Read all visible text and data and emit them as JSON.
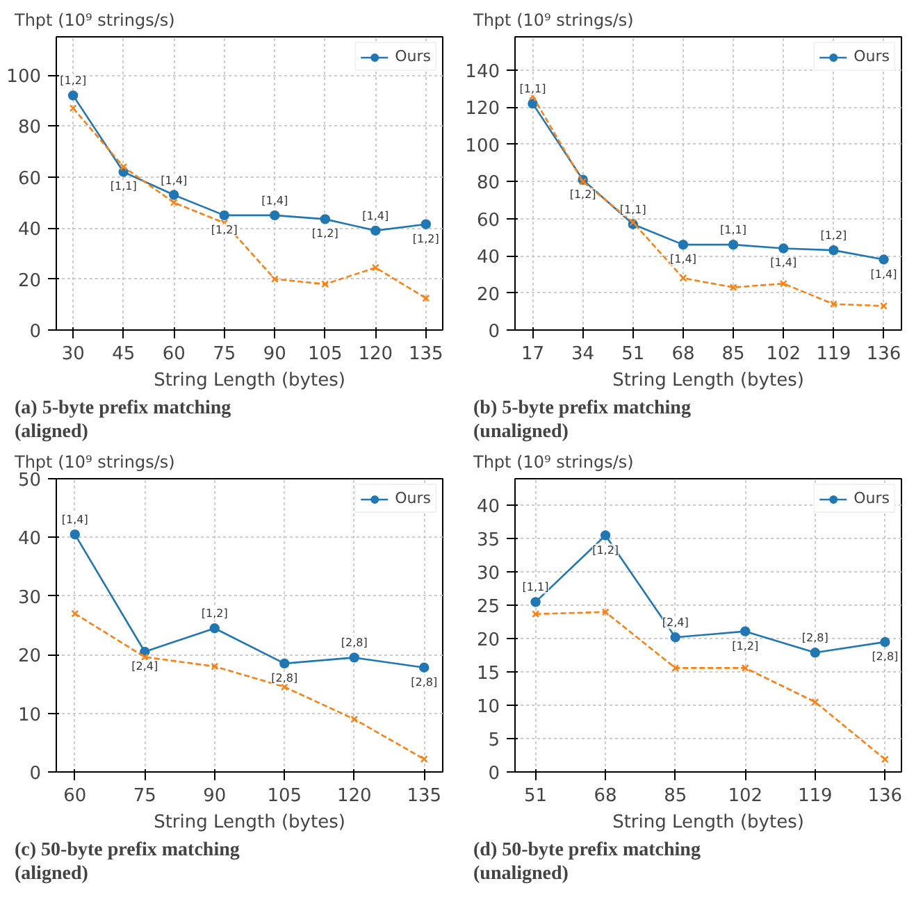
{
  "chart_data": [
    {
      "type": "line",
      "title": "(a) 5-byte prefix matching (aligned)",
      "ylabel": "Thpt (10⁹ strings/s)",
      "xlabel": "String Length (bytes)",
      "x": [
        30,
        45,
        60,
        75,
        90,
        105,
        120,
        135
      ],
      "xlim": [
        25,
        140
      ],
      "xticks": [
        30,
        45,
        60,
        75,
        90,
        105,
        120,
        135
      ],
      "ylim": [
        0,
        115
      ],
      "yticks": [
        0,
        20,
        40,
        60,
        80,
        100
      ],
      "grid": true,
      "legend": "top right",
      "series": [
        {
          "name": "Ours",
          "color": "#1f77b4",
          "marker": "circle",
          "line_style": "solid",
          "values": [
            92,
            62,
            53,
            45,
            45,
            43.5,
            39,
            41.5
          ]
        },
        {
          "color": "#ff7f0e",
          "marker": "cross",
          "line_style": "dashed",
          "values": [
            87,
            64,
            50,
            42,
            20,
            18,
            24.5,
            12.5
          ]
        }
      ],
      "annotations": [
        {
          "text": "[1,2]",
          "x": 30,
          "y": 92
        },
        {
          "text": "[1,1]",
          "x": 45,
          "y": 62
        },
        {
          "text": "[1,4]",
          "x": 60,
          "y": 53
        },
        {
          "text": "[1,2]",
          "x": 75,
          "y": 45
        },
        {
          "text": "[1,4]",
          "x": 90,
          "y": 45
        },
        {
          "text": "[1,2]",
          "x": 105,
          "y": 43.5
        },
        {
          "text": "[1,4]",
          "x": 120,
          "y": 39
        },
        {
          "text": "[1,2]",
          "x": 135,
          "y": 41.5
        }
      ]
    },
    {
      "type": "line",
      "title": "(b) 5-byte prefix matching (unaligned)",
      "ylabel": "Thpt (10⁹ strings/s)",
      "xlabel": "String Length (bytes)",
      "x": [
        17,
        34,
        51,
        68,
        85,
        102,
        119,
        136
      ],
      "xlim": [
        11,
        142
      ],
      "xticks": [
        17,
        34,
        51,
        68,
        85,
        102,
        119,
        136
      ],
      "ylim": [
        0,
        158
      ],
      "yticks": [
        0,
        20,
        40,
        60,
        80,
        100,
        120,
        140
      ],
      "grid": true,
      "legend": "top right",
      "series": [
        {
          "name": "Ours",
          "color": "#1f77b4",
          "marker": "circle",
          "line_style": "solid",
          "values": [
            122,
            81,
            57,
            46,
            46,
            44,
            43,
            38
          ]
        },
        {
          "color": "#ff7f0e",
          "marker": "cross",
          "line_style": "dashed",
          "values": [
            126,
            80,
            58,
            28,
            23,
            25,
            14,
            13
          ]
        }
      ],
      "annotations": [
        {
          "text": "[1,1]",
          "x": 17,
          "y": 122
        },
        {
          "text": "[1,2]",
          "x": 34,
          "y": 81
        },
        {
          "text": "[1,1]",
          "x": 51,
          "y": 57
        },
        {
          "text": "[1,4]",
          "x": 68,
          "y": 46
        },
        {
          "text": "[1,1]",
          "x": 85,
          "y": 46
        },
        {
          "text": "[1,4]",
          "x": 102,
          "y": 44
        },
        {
          "text": "[1,2]",
          "x": 119,
          "y": 43
        },
        {
          "text": "[1,4]",
          "x": 136,
          "y": 38
        }
      ]
    },
    {
      "type": "line",
      "title": "(c) 50-byte prefix matching (aligned)",
      "ylabel": "Thpt (10⁹ strings/s)",
      "xlabel": "String Length (bytes)",
      "x": [
        60,
        75,
        90,
        105,
        120,
        135
      ],
      "xlim": [
        56,
        139
      ],
      "xticks": [
        60,
        75,
        90,
        105,
        120,
        135
      ],
      "ylim": [
        0,
        50
      ],
      "yticks": [
        0,
        10,
        20,
        30,
        40,
        50
      ],
      "grid": true,
      "legend": "top right",
      "series": [
        {
          "name": "Ours",
          "color": "#1f77b4",
          "marker": "circle",
          "line_style": "solid",
          "values": [
            40.5,
            20.5,
            24.5,
            18.5,
            19.5,
            17.8
          ]
        },
        {
          "color": "#ff7f0e",
          "marker": "cross",
          "line_style": "dashed",
          "values": [
            27,
            19.6,
            18,
            14.5,
            9,
            2.2
          ]
        }
      ],
      "annotations": [
        {
          "text": "[1,4]",
          "x": 60,
          "y": 40.5
        },
        {
          "text": "[2,4]",
          "x": 75,
          "y": 20.5
        },
        {
          "text": "[1,2]",
          "x": 90,
          "y": 24.5
        },
        {
          "text": "[2,8]",
          "x": 105,
          "y": 18.5
        },
        {
          "text": "[2,8]",
          "x": 120,
          "y": 19.5
        },
        {
          "text": "[2,8]",
          "x": 135,
          "y": 17.8
        }
      ]
    },
    {
      "type": "line",
      "title": "(d) 50-byte prefix matching (unaligned)",
      "ylabel": "Thpt (10⁹ strings/s)",
      "xlabel": "String Length (bytes)",
      "x": [
        51,
        68,
        85,
        102,
        119,
        136
      ],
      "xlim": [
        46,
        140
      ],
      "xticks": [
        51,
        68,
        85,
        102,
        119,
        136
      ],
      "ylim": [
        0,
        44
      ],
      "yticks": [
        0,
        5,
        10,
        15,
        20,
        25,
        30,
        35,
        40
      ],
      "grid": true,
      "legend": "top right",
      "series": [
        {
          "name": "Ours",
          "color": "#1f77b4",
          "marker": "circle",
          "line_style": "solid",
          "values": [
            25.5,
            35.5,
            20.2,
            21.1,
            17.9,
            19.5
          ]
        },
        {
          "color": "#ff7f0e",
          "marker": "cross",
          "line_style": "dashed",
          "values": [
            23.7,
            24,
            15.6,
            15.6,
            10.5,
            1.9
          ]
        }
      ],
      "annotations": [
        {
          "text": "[1,1]",
          "x": 51,
          "y": 25.5
        },
        {
          "text": "[1,2]",
          "x": 68,
          "y": 35.5
        },
        {
          "text": "[2,4]",
          "x": 85,
          "y": 20.2
        },
        {
          "text": "[1,2]",
          "x": 102,
          "y": 21.1
        },
        {
          "text": "[2,8]",
          "x": 119,
          "y": 17.9
        },
        {
          "text": "[2,8]",
          "x": 136,
          "y": 19.5
        }
      ]
    }
  ]
}
